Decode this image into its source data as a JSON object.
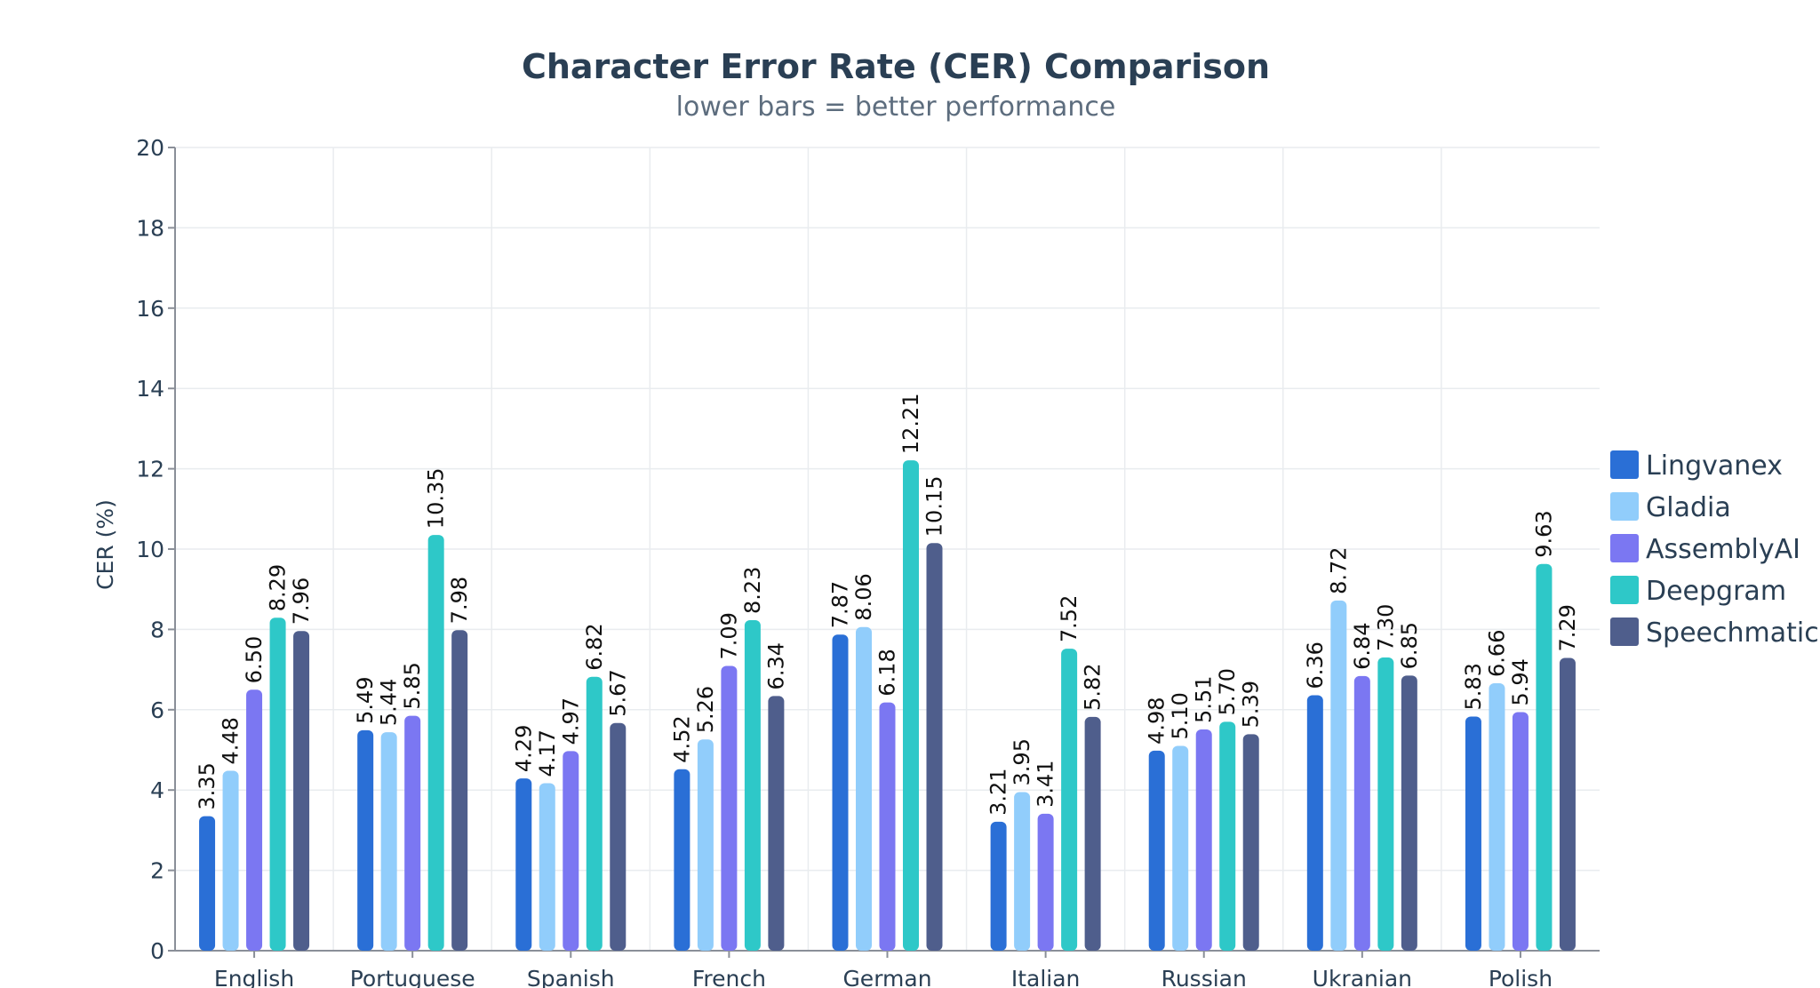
{
  "chart_data": {
    "type": "bar",
    "title": "Character Error Rate (CER) Comparison",
    "subtitle": "lower bars = better performance",
    "xlabel": "",
    "ylabel": "CER (%)",
    "ylim": [
      0,
      20
    ],
    "yticks": [
      "0",
      "2",
      "4",
      "6",
      "8",
      "10",
      "12",
      "14",
      "16",
      "18",
      "20"
    ],
    "grid": true,
    "legend_position": "right",
    "categories": [
      "English",
      "Portuguese",
      "Spanish",
      "French",
      "German",
      "Italian",
      "Russian",
      "Ukranian",
      "Polish"
    ],
    "series": [
      {
        "name": "Lingvanex",
        "color": "#2a6fd6",
        "values": [
          3.35,
          5.49,
          4.29,
          4.52,
          7.87,
          3.21,
          4.98,
          6.36,
          5.83
        ],
        "labels": [
          "3.35",
          "5.49",
          "4.29",
          "4.52",
          "7.87",
          "3.21",
          "4.98",
          "6.36",
          "5.83"
        ]
      },
      {
        "name": "Gladia",
        "color": "#91cdfb",
        "values": [
          4.48,
          5.44,
          4.17,
          5.26,
          8.06,
          3.95,
          5.1,
          8.72,
          6.66
        ],
        "labels": [
          "4.48",
          "5.44",
          "4.17",
          "5.26",
          "8.06",
          "3.95",
          "5.10",
          "8.72",
          "6.66"
        ]
      },
      {
        "name": "AssemblyAI",
        "color": "#7b77f2",
        "values": [
          6.5,
          5.85,
          4.97,
          7.09,
          6.18,
          3.41,
          5.51,
          6.84,
          5.94
        ],
        "labels": [
          "6.50",
          "5.85",
          "4.97",
          "7.09",
          "6.18",
          "3.41",
          "5.51",
          "6.84",
          "5.94"
        ]
      },
      {
        "name": "Deepgram",
        "color": "#2ec8c8",
        "values": [
          8.29,
          10.35,
          6.82,
          8.23,
          12.21,
          7.52,
          5.7,
          7.3,
          9.63
        ],
        "labels": [
          "8.29",
          "10.35",
          "6.82",
          "8.23",
          "12.21",
          "7.52",
          "5.70",
          "7.30",
          "9.63"
        ]
      },
      {
        "name": "Speechmatics",
        "color": "#4f5e8c",
        "values": [
          7.96,
          7.98,
          5.67,
          6.34,
          10.15,
          5.82,
          5.39,
          6.85,
          7.29
        ],
        "labels": [
          "7.96",
          "7.98",
          "5.67",
          "6.34",
          "10.15",
          "5.82",
          "5.39",
          "6.85",
          "7.29"
        ]
      }
    ]
  }
}
